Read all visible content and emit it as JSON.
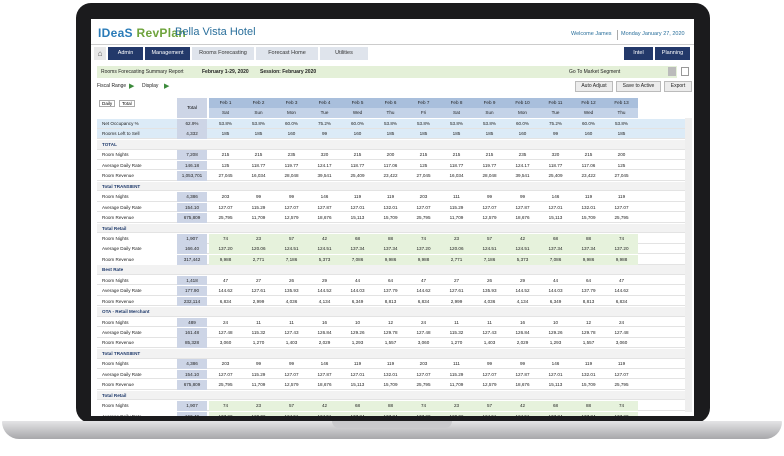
{
  "app": {
    "logo_prefix": "IDeaS",
    "logo_product": "RevPlan",
    "hotel": "Bella Vista Hotel",
    "welcome": "Welcome James",
    "date": "Monday January 27, 2020"
  },
  "nav": {
    "tabs": [
      "Admin",
      "Management",
      "Rooms Forecasting",
      "Forecast Home",
      "Utilities"
    ],
    "right": [
      "Intel",
      "Planning"
    ]
  },
  "summary": {
    "title": "Rooms Forecasting Summary Report",
    "range": "February 1-29, 2020",
    "session": "Session: February 2020",
    "goto": "Go To Market Segment"
  },
  "toolbar": {
    "fiscal": "Fiscal Range",
    "display": "Display",
    "auto": "Auto Adjust",
    "save": "Save to Active",
    "export": "Export"
  },
  "grid": {
    "label_head": [
      "Daily",
      "Total"
    ],
    "total_head": "Total",
    "dates": [
      "Feb 1",
      "Feb 2",
      "Feb 3",
      "Feb 4",
      "Feb 5",
      "Feb 6",
      "Feb 7",
      "Feb 8",
      "Feb 9",
      "Feb 10",
      "Feb 11",
      "Feb 12",
      "Feb 13"
    ],
    "days": [
      "Sat",
      "Sun",
      "Mon",
      "Tue",
      "Wed",
      "Thu",
      "Fri",
      "Sat",
      "Sun",
      "Mon",
      "Tue",
      "Wed",
      "Thu"
    ],
    "rows": [
      {
        "label": "Net Occupancy %",
        "total": "62.9%",
        "vals": [
          "53.8%",
          "53.8%",
          "60.0%",
          "75.2%",
          "60.0%",
          "53.8%",
          "53.8%",
          "53.8%",
          "53.8%",
          "60.0%",
          "75.2%",
          "60.0%",
          "53.8%"
        ],
        "kind": "blue"
      },
      {
        "label": "Rooms Left to Sell",
        "total": "4,332",
        "vals": [
          "185",
          "185",
          "160",
          "99",
          "160",
          "185",
          "185",
          "185",
          "185",
          "160",
          "99",
          "160",
          "185"
        ],
        "kind": "blue"
      },
      {
        "label": "TOTAL",
        "kind": "sec"
      },
      {
        "label": "Room Nights",
        "total": "7,208",
        "vals": [
          "215",
          "215",
          "235",
          "320",
          "215",
          "200",
          "215",
          "215",
          "215",
          "235",
          "320",
          "215",
          "200"
        ]
      },
      {
        "label": "Average Daily Rate",
        "total": "146.18",
        "vals": [
          "125",
          "118.77",
          "119.77",
          "124.17",
          "118.77",
          "117.06",
          "125",
          "118.77",
          "119.77",
          "124.17",
          "118.77",
          "117.06",
          "125"
        ]
      },
      {
        "label": "Room Revenue",
        "total": "1,053,701",
        "vals": [
          "27,045",
          "16,034",
          "28,048",
          "39,541",
          "25,409",
          "23,422",
          "27,045",
          "16,034",
          "28,048",
          "39,541",
          "25,409",
          "23,422",
          "27,045"
        ]
      },
      {
        "label": "Total TRANSIENT",
        "kind": "sec"
      },
      {
        "label": "Room Nights",
        "total": "4,386",
        "vals": [
          "203",
          "99",
          "99",
          "146",
          "119",
          "119",
          "203",
          "111",
          "99",
          "99",
          "146",
          "119",
          "119"
        ]
      },
      {
        "label": "Average Daily Rate",
        "total": "154.10",
        "vals": [
          "127.07",
          "115.29",
          "127.07",
          "127.87",
          "127.01",
          "132.01",
          "127.07",
          "115.29",
          "127.07",
          "127.87",
          "127.01",
          "132.01",
          "127.07"
        ]
      },
      {
        "label": "Room Revenue",
        "total": "675,809",
        "vals": [
          "25,795",
          "11,709",
          "12,579",
          "18,676",
          "15,113",
          "15,709",
          "25,795",
          "11,709",
          "12,579",
          "18,676",
          "15,113",
          "15,709",
          "25,795"
        ]
      },
      {
        "label": "Total Retail",
        "kind": "sec"
      },
      {
        "label": "Room Nights",
        "total": "1,907",
        "vals": [
          "74",
          "23",
          "57",
          "42",
          "68",
          "88",
          "74",
          "23",
          "57",
          "42",
          "68",
          "88",
          "74"
        ],
        "kind": "green"
      },
      {
        "label": "Average Daily Rate",
        "total": "166.40",
        "vals": [
          "137.20",
          "120.06",
          "124.51",
          "124.51",
          "137.34",
          "137.34",
          "137.20",
          "120.06",
          "124.51",
          "124.51",
          "137.34",
          "137.34",
          "137.20"
        ],
        "kind": "green"
      },
      {
        "label": "Room Revenue",
        "total": "317,442",
        "vals": [
          "9,988",
          "2,771",
          "7,186",
          "5,373",
          "7,086",
          "9,986",
          "9,988",
          "2,771",
          "7,186",
          "5,373",
          "7,086",
          "9,986",
          "9,988"
        ],
        "kind": "green"
      },
      {
        "label": "Best Rate",
        "kind": "sec"
      },
      {
        "label": "Room Nights",
        "total": "1,418",
        "vals": [
          "47",
          "27",
          "26",
          "29",
          "44",
          "64",
          "47",
          "27",
          "26",
          "29",
          "44",
          "64",
          "47"
        ]
      },
      {
        "label": "Average Daily Rate",
        "total": "177.90",
        "vals": [
          "144.62",
          "127.61",
          "135.93",
          "144.52",
          "144.03",
          "137.79",
          "144.62",
          "127.61",
          "135.93",
          "144.52",
          "144.03",
          "137.79",
          "144.62"
        ]
      },
      {
        "label": "Room Revenue",
        "total": "232,114",
        "vals": [
          "6,834",
          "2,999",
          "4,036",
          "4,134",
          "6,349",
          "8,813",
          "6,834",
          "2,999",
          "4,036",
          "4,134",
          "6,349",
          "8,813",
          "6,834"
        ]
      },
      {
        "label": "OTA - Retail Merchant",
        "kind": "sec"
      },
      {
        "label": "Room Nights",
        "total": "489",
        "vals": [
          "24",
          "11",
          "11",
          "16",
          "10",
          "12",
          "24",
          "11",
          "11",
          "16",
          "10",
          "12",
          "24"
        ]
      },
      {
        "label": "Average Daily Rate",
        "total": "161.48",
        "vals": [
          "127.48",
          "115.32",
          "127.43",
          "126.84",
          "129.26",
          "129.78",
          "127.48",
          "115.32",
          "127.43",
          "126.84",
          "129.26",
          "129.78",
          "127.48"
        ]
      },
      {
        "label": "Room Revenue",
        "total": "85,328",
        "vals": [
          "3,060",
          "1,270",
          "1,403",
          "2,029",
          "1,293",
          "1,557",
          "3,060",
          "1,270",
          "1,403",
          "2,029",
          "1,293",
          "1,557",
          "3,060"
        ]
      },
      {
        "label": "Total TRANSIENT",
        "kind": "sec"
      },
      {
        "label": "Room Nights",
        "total": "4,386",
        "vals": [
          "203",
          "99",
          "99",
          "146",
          "119",
          "119",
          "203",
          "111",
          "99",
          "99",
          "146",
          "119",
          "119"
        ]
      },
      {
        "label": "Average Daily Rate",
        "total": "154.10",
        "vals": [
          "127.07",
          "115.29",
          "127.07",
          "127.87",
          "127.01",
          "132.01",
          "127.07",
          "115.29",
          "127.07",
          "127.87",
          "127.01",
          "132.01",
          "127.07"
        ]
      },
      {
        "label": "Room Revenue",
        "total": "675,809",
        "vals": [
          "25,795",
          "11,709",
          "12,579",
          "18,676",
          "15,113",
          "15,709",
          "25,795",
          "11,709",
          "12,579",
          "18,676",
          "15,113",
          "15,709",
          "25,795"
        ]
      },
      {
        "label": "Total Retail",
        "kind": "sec"
      },
      {
        "label": "Room Nights",
        "total": "1,907",
        "vals": [
          "74",
          "23",
          "57",
          "42",
          "68",
          "88",
          "74",
          "23",
          "57",
          "42",
          "68",
          "88",
          "74"
        ],
        "kind": "green"
      },
      {
        "label": "Average Daily Rate",
        "total": "166.40",
        "vals": [
          "137.20",
          "120.06",
          "124.51",
          "124.51",
          "137.34",
          "137.34",
          "137.20",
          "120.06",
          "124.51",
          "124.51",
          "137.34",
          "137.34",
          "137.20"
        ],
        "kind": "green"
      },
      {
        "label": "Room Revenue",
        "total": "317,442",
        "vals": [
          "9,988",
          "2,771",
          "7,186",
          "5,373",
          "7,086",
          "9,986",
          "9,988",
          "2,771",
          "7,186",
          "5,373",
          "7,086",
          "9,986",
          "9,988"
        ],
        "kind": "green"
      },
      {
        "label": "Best Rate",
        "kind": "sec"
      }
    ]
  }
}
